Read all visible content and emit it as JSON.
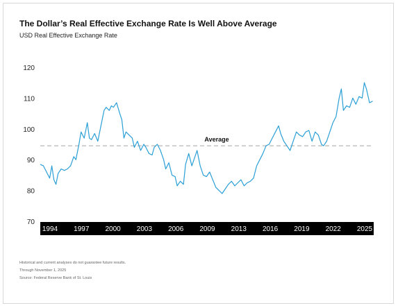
{
  "header": {
    "title": "The Dollar’s Real Effective Exchange Rate Is Well Above Average",
    "subtitle": "USD Real Effective Exchange Rate"
  },
  "footnotes": [
    "Historical and current analyses do not guarantee future results.",
    "Through November 1, 2025",
    "Source: Federal Reserve Bank of St. Louis"
  ],
  "colors": {
    "line": "#2a9fd6",
    "average_line": "#bdbdbd",
    "axis_band": "#000000",
    "axis_text": "#ffffff"
  },
  "chart_data": {
    "type": "line",
    "title": "The Dollar’s Real Effective Exchange Rate Is Well Above Average",
    "subtitle": "USD Real Effective Exchange Rate",
    "xlabel": "",
    "ylabel": "",
    "xlim": [
      1994,
      2025.9
    ],
    "ylim": [
      70,
      120
    ],
    "yticks": [
      70,
      80,
      90,
      100,
      110,
      120
    ],
    "xticks": [
      "1994",
      "1997",
      "2000",
      "2003",
      "2006",
      "2009",
      "2013",
      "2016",
      "2019",
      "2022",
      "2025"
    ],
    "grid": false,
    "legend": "none",
    "annotations": [
      {
        "text": "Average",
        "y": 94.5
      }
    ],
    "series": [
      {
        "x": [
          1994.0,
          1994.3,
          1994.6,
          1994.9,
          1995.1,
          1995.3,
          1995.5,
          1995.7,
          1996.0,
          1996.3,
          1996.6,
          1996.9,
          1997.2,
          1997.4,
          1997.7,
          1997.9,
          1998.2,
          1998.5,
          1998.7,
          1998.9,
          1999.2,
          1999.5,
          1999.8,
          2000.1,
          2000.3,
          2000.6,
          2000.8,
          2001.0,
          2001.3,
          2001.6,
          2001.8,
          2002.0,
          2002.2,
          2002.5,
          2002.8,
          2003.0,
          2003.3,
          2003.6,
          2003.9,
          2004.1,
          2004.4,
          2004.7,
          2004.9,
          2005.2,
          2005.5,
          2005.8,
          2006.0,
          2006.3,
          2006.6,
          2006.9,
          2007.1,
          2007.4,
          2007.7,
          2007.9,
          2008.2,
          2008.5,
          2008.8,
          2009.0,
          2009.3,
          2009.6,
          2009.9,
          2010.2,
          2010.5,
          2010.8,
          2011.1,
          2011.4,
          2011.7,
          2012.0,
          2012.3,
          2012.6,
          2012.9,
          2013.2,
          2013.5,
          2013.8,
          2014.1,
          2014.4,
          2014.7,
          2015.0,
          2015.3,
          2015.6,
          2015.9,
          2016.2,
          2016.5,
          2016.8,
          2017.0,
          2017.3,
          2017.6,
          2017.9,
          2018.2,
          2018.5,
          2018.8,
          2019.1,
          2019.4,
          2019.7,
          2020.0,
          2020.3,
          2020.6,
          2020.9,
          2021.1,
          2021.4,
          2021.7,
          2022.0,
          2022.3,
          2022.6,
          2022.8,
          2023.0,
          2023.3,
          2023.6,
          2023.9,
          2024.2,
          2024.5,
          2024.8,
          2025.0,
          2025.2,
          2025.5,
          2025.8
        ],
        "y": [
          88.5,
          88.0,
          86.0,
          84.0,
          88.0,
          83.5,
          82.0,
          85.5,
          87.0,
          86.5,
          87.0,
          88.0,
          91.0,
          90.0,
          95.0,
          99.0,
          97.0,
          102.0,
          97.0,
          96.5,
          98.5,
          96.0,
          101.0,
          106.0,
          107.0,
          106.0,
          107.5,
          107.0,
          108.5,
          105.0,
          103.0,
          97.0,
          99.0,
          98.0,
          97.0,
          94.0,
          96.0,
          93.0,
          95.0,
          94.0,
          92.0,
          91.5,
          94.0,
          95.0,
          93.0,
          90.0,
          87.0,
          89.0,
          85.0,
          84.5,
          81.5,
          83.0,
          82.0,
          88.5,
          92.0,
          88.0,
          91.0,
          93.0,
          88.0,
          85.0,
          84.5,
          86.0,
          83.5,
          81.0,
          80.0,
          79.0,
          80.5,
          82.0,
          83.0,
          81.5,
          82.5,
          83.5,
          81.5,
          82.5,
          83.0,
          84.0,
          88.0,
          90.0,
          92.0,
          94.5,
          95.0,
          97.0,
          99.0,
          101.0,
          98.5,
          96.0,
          94.5,
          93.0,
          96.0,
          99.0,
          98.0,
          97.5,
          99.0,
          99.5,
          96.0,
          99.0,
          98.0,
          95.0,
          94.5,
          96.0,
          99.0,
          102.0,
          104.0,
          110.0,
          113.0,
          106.0,
          107.5,
          107.0,
          110.0,
          108.0,
          110.5,
          110.0,
          115.0,
          113.0,
          108.5,
          109.0
        ]
      }
    ]
  }
}
